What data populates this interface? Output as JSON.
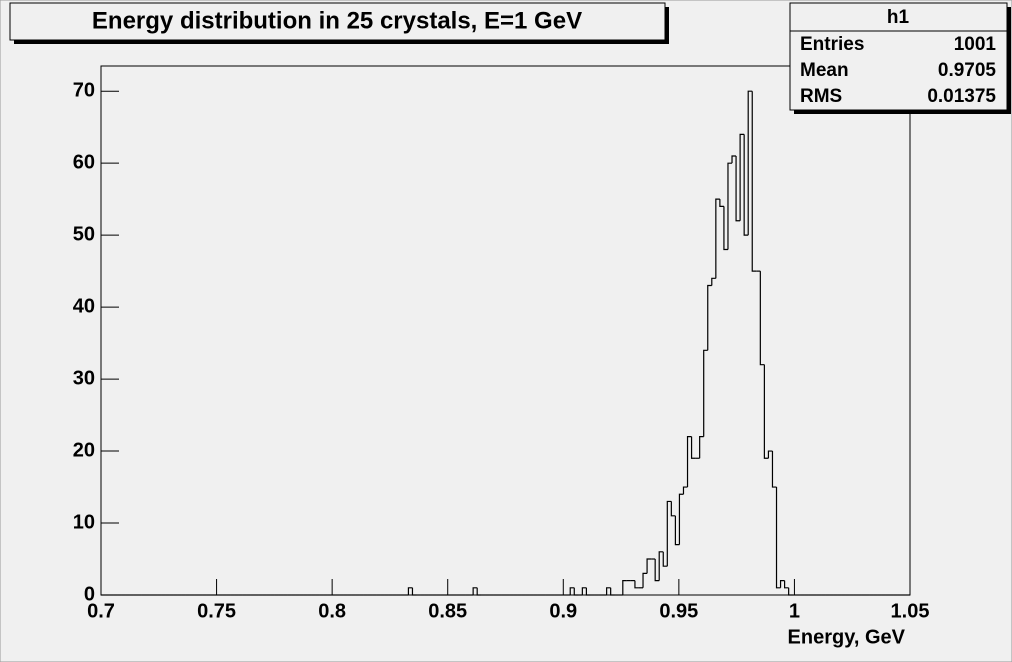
{
  "chart_data": {
    "type": "histogram",
    "title": "Energy distribution in 25 crystals, E=1 GeV",
    "x_label": "Energy, GeV",
    "stats": {
      "name": "h1",
      "labels": [
        "Entries",
        "Mean",
        "RMS"
      ],
      "values": [
        1001,
        0.9705,
        0.01375
      ]
    },
    "color": "#000000",
    "bins": [
      0.7,
      0.70175,
      0.7035,
      0.70525,
      0.707,
      0.70875,
      0.7105,
      0.71225,
      0.714,
      0.71575,
      0.7175,
      0.71925,
      0.721,
      0.72275,
      0.7245,
      0.72625,
      0.728,
      0.72975,
      0.7315,
      0.73325,
      0.735,
      0.73675,
      0.7385,
      0.74025,
      0.742,
      0.74375,
      0.7455,
      0.74725,
      0.749,
      0.75075,
      0.7525,
      0.75425,
      0.756,
      0.75775,
      0.7595,
      0.76125,
      0.763,
      0.76475,
      0.7665,
      0.76825,
      0.77,
      0.77175,
      0.7735,
      0.77525,
      0.777,
      0.77875,
      0.7805,
      0.78225,
      0.784,
      0.78575,
      0.7875,
      0.78925,
      0.791,
      0.79275,
      0.7945,
      0.79625,
      0.798,
      0.79975,
      0.8015,
      0.80325,
      0.805,
      0.80675,
      0.8085,
      0.81025,
      0.812,
      0.81375,
      0.8155,
      0.81725,
      0.819,
      0.82075,
      0.8225,
      0.82425,
      0.826,
      0.82775,
      0.8295,
      0.83125,
      0.833,
      0.83475,
      0.8365,
      0.83825,
      0.84,
      0.84175,
      0.8435,
      0.84525,
      0.847,
      0.84875,
      0.8505,
      0.85225,
      0.854,
      0.85575,
      0.8575,
      0.85925,
      0.861,
      0.86275,
      0.8645,
      0.86625,
      0.868,
      0.86975,
      0.8715,
      0.87325,
      0.875,
      0.87675,
      0.8785,
      0.88025,
      0.882,
      0.88375,
      0.8855,
      0.88725,
      0.889,
      0.89075,
      0.8925,
      0.89425,
      0.896,
      0.89775,
      0.8995,
      0.90125,
      0.903,
      0.90475,
      0.9065,
      0.90825,
      0.91,
      0.91175,
      0.9135,
      0.91525,
      0.917,
      0.91875,
      0.9205,
      0.92225,
      0.924,
      0.92575,
      0.9275,
      0.92925,
      0.931,
      0.93275,
      0.9345,
      0.93625,
      0.938,
      0.93975,
      0.9415,
      0.94325,
      0.945,
      0.94675,
      0.9485,
      0.95025,
      0.952,
      0.95375,
      0.9555,
      0.95725,
      0.959,
      0.96075,
      0.9625,
      0.96425,
      0.966,
      0.96775,
      0.9695,
      0.97125,
      0.973,
      0.97475,
      0.9765,
      0.97825,
      0.98,
      0.98175,
      0.9835,
      0.98525,
      0.987,
      0.98875,
      0.9905,
      0.99225,
      0.994,
      0.99575,
      0.9975,
      0.99925,
      1.001,
      1.00275,
      1.0045,
      1.00625,
      1.008,
      1.00975,
      1.0115,
      1.01325,
      1.015,
      1.01675,
      1.0185,
      1.02025,
      1.022,
      1.02375,
      1.0255,
      1.02725,
      1.029,
      1.03075,
      1.0325,
      1.03425,
      1.036,
      1.03775,
      1.0395,
      1.04125,
      1.043,
      1.04475,
      1.0465,
      1.04825,
      1.05
    ],
    "counts": [
      0,
      0,
      0,
      0,
      0,
      0,
      0,
      0,
      0,
      0,
      0,
      0,
      0,
      0,
      0,
      0,
      0,
      0,
      0,
      0,
      0,
      0,
      0,
      0,
      0,
      0,
      0,
      0,
      0,
      0,
      0,
      0,
      0,
      0,
      0,
      0,
      0,
      0,
      0,
      0,
      0,
      0,
      0,
      0,
      0,
      0,
      0,
      0,
      0,
      0,
      0,
      0,
      0,
      0,
      0,
      0,
      0,
      0,
      0,
      0,
      0,
      0,
      0,
      0,
      0,
      0,
      0,
      0,
      0,
      0,
      0,
      0,
      0,
      0,
      0,
      0,
      1,
      0,
      0,
      0,
      0,
      0,
      0,
      0,
      0,
      0,
      0,
      0,
      0,
      0,
      0,
      0,
      1,
      0,
      0,
      0,
      0,
      0,
      0,
      0,
      0,
      0,
      0,
      0,
      0,
      0,
      0,
      0,
      0,
      0,
      0,
      0,
      0,
      0,
      0,
      0,
      1,
      0,
      0,
      1,
      0,
      0,
      0,
      0,
      0,
      1,
      0,
      0,
      0,
      2,
      2,
      2,
      1,
      1,
      3,
      5,
      5,
      2,
      6,
      4,
      13,
      11,
      7,
      14,
      15,
      22,
      19,
      19,
      22,
      34,
      43,
      44,
      55,
      54,
      48,
      60,
      61,
      52,
      64,
      50,
      70,
      45,
      45,
      32,
      19,
      20,
      15,
      1,
      2,
      1,
      0,
      0,
      0,
      0,
      0,
      0,
      0,
      0,
      0,
      0,
      0,
      0,
      0,
      0,
      0,
      0,
      0,
      0,
      0,
      0,
      0,
      0,
      0,
      0,
      0,
      0,
      0,
      0,
      0,
      0
    ],
    "xlim": [
      0.7,
      1.05
    ],
    "xticks": [
      0.7,
      0.75,
      0.8,
      0.85,
      0.9,
      0.95,
      1,
      1.05
    ],
    "ylim": [
      0,
      73.5
    ],
    "yticks": [
      0,
      10,
      20,
      30,
      40,
      50,
      60,
      70
    ]
  }
}
